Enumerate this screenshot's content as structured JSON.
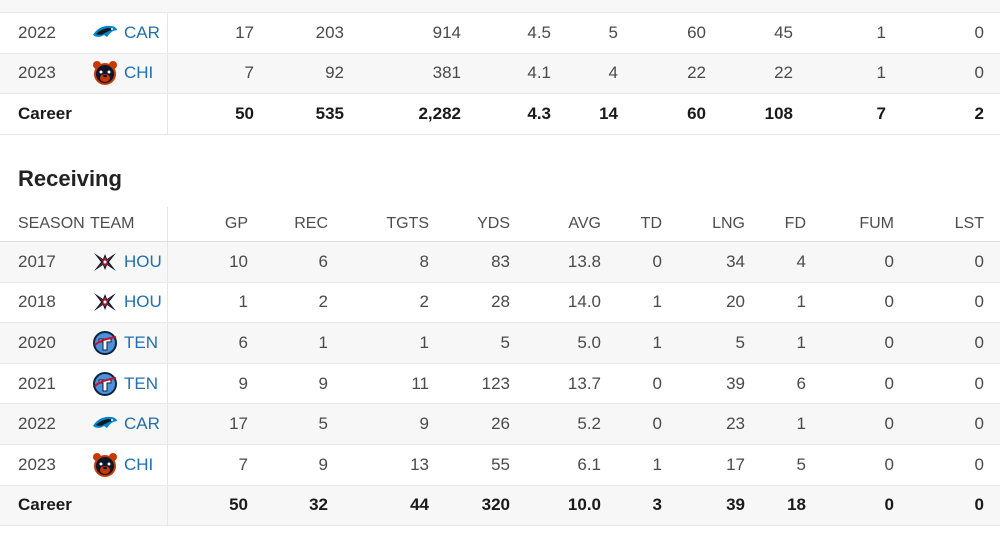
{
  "rushing": {
    "rows": [
      {
        "season": "2022",
        "team": "CAR",
        "logo": "panthers",
        "vals": [
          "17",
          "203",
          "914",
          "4.5",
          "5",
          "60",
          "45",
          "1",
          "0"
        ]
      },
      {
        "season": "2023",
        "team": "CHI",
        "logo": "bears",
        "vals": [
          "7",
          "92",
          "381",
          "4.1",
          "4",
          "22",
          "22",
          "1",
          "0"
        ]
      }
    ],
    "career": {
      "label": "Career",
      "vals": [
        "50",
        "535",
        "2,282",
        "4.3",
        "14",
        "60",
        "108",
        "7",
        "2"
      ]
    }
  },
  "receiving": {
    "title": "Receiving",
    "headers": {
      "season": "SEASON",
      "team": "TEAM",
      "cols": [
        "GP",
        "REC",
        "TGTS",
        "YDS",
        "AVG",
        "TD",
        "LNG",
        "FD",
        "FUM",
        "LST"
      ]
    },
    "rows": [
      {
        "season": "2017",
        "team": "HOU",
        "logo": "texans",
        "vals": [
          "10",
          "6",
          "8",
          "83",
          "13.8",
          "0",
          "34",
          "4",
          "0",
          "0"
        ]
      },
      {
        "season": "2018",
        "team": "HOU",
        "logo": "texans",
        "vals": [
          "1",
          "2",
          "2",
          "28",
          "14.0",
          "1",
          "20",
          "1",
          "0",
          "0"
        ]
      },
      {
        "season": "2020",
        "team": "TEN",
        "logo": "titans",
        "vals": [
          "6",
          "1",
          "1",
          "5",
          "5.0",
          "1",
          "5",
          "1",
          "0",
          "0"
        ]
      },
      {
        "season": "2021",
        "team": "TEN",
        "logo": "titans",
        "vals": [
          "9",
          "9",
          "11",
          "123",
          "13.7",
          "0",
          "39",
          "6",
          "0",
          "0"
        ]
      },
      {
        "season": "2022",
        "team": "CAR",
        "logo": "panthers",
        "vals": [
          "17",
          "5",
          "9",
          "26",
          "5.2",
          "0",
          "23",
          "1",
          "0",
          "0"
        ]
      },
      {
        "season": "2023",
        "team": "CHI",
        "logo": "bears",
        "vals": [
          "7",
          "9",
          "13",
          "55",
          "6.1",
          "1",
          "17",
          "5",
          "0",
          "0"
        ]
      }
    ],
    "career": {
      "label": "Career",
      "vals": [
        "50",
        "32",
        "44",
        "320",
        "10.0",
        "3",
        "39",
        "18",
        "0",
        "0"
      ]
    }
  },
  "colors": {
    "link": "#1f6fb2",
    "stripe": "#f7f7f7",
    "border": "#e9e9e9"
  }
}
